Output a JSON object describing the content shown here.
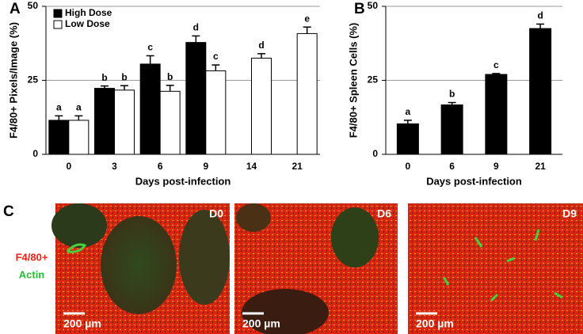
{
  "chart_data": [
    {
      "type": "bar",
      "panel_label": "A",
      "x_label": "Days post-infection",
      "y_label": "F4/80+ Pixels/Image (%)",
      "categories": [
        "0",
        "3",
        "6",
        "9",
        "14",
        "21"
      ],
      "series": [
        {
          "name": "High Dose",
          "color": "#000000",
          "values": [
            11.5,
            22.3,
            30.5,
            37.8,
            null,
            null
          ],
          "errors": [
            1.5,
            0.8,
            2.8,
            2.2,
            null,
            null
          ],
          "letters": [
            "a",
            "b",
            "c",
            "d",
            null,
            null
          ]
        },
        {
          "name": "Low Dose",
          "color": "#ffffff",
          "values": [
            11.5,
            21.7,
            21.3,
            28.2,
            32.5,
            40.8
          ],
          "errors": [
            1.5,
            1.5,
            2.0,
            2.0,
            1.5,
            2.2
          ],
          "letters": [
            "a",
            "b",
            "b",
            "c",
            "d",
            "e"
          ]
        }
      ],
      "ylim": [
        0,
        50
      ],
      "yticks": [
        0,
        25,
        50
      ],
      "grid": true,
      "legend": "top-left"
    },
    {
      "type": "bar",
      "panel_label": "B",
      "x_label": "Days post-infection",
      "y_label": "F4/80+ Spleen Cells (%)",
      "categories": [
        "0",
        "6",
        "9",
        "21"
      ],
      "values": [
        10.3,
        16.7,
        27.0,
        42.5
      ],
      "errors": [
        1.2,
        0.8,
        0.3,
        1.5
      ],
      "letters": [
        "a",
        "b",
        "c",
        "d"
      ],
      "color": "#000000",
      "ylim": [
        0,
        50
      ],
      "yticks": [
        0,
        25,
        50
      ],
      "grid": true
    }
  ],
  "panel_c": {
    "panel_label": "C",
    "stain_1": "F4/80+",
    "stain_2": "Actin",
    "images": [
      {
        "label": "D0",
        "scale": "200 µm"
      },
      {
        "label": "D6",
        "scale": "200 µm"
      },
      {
        "label": "D9",
        "scale": "200 µm"
      }
    ]
  }
}
